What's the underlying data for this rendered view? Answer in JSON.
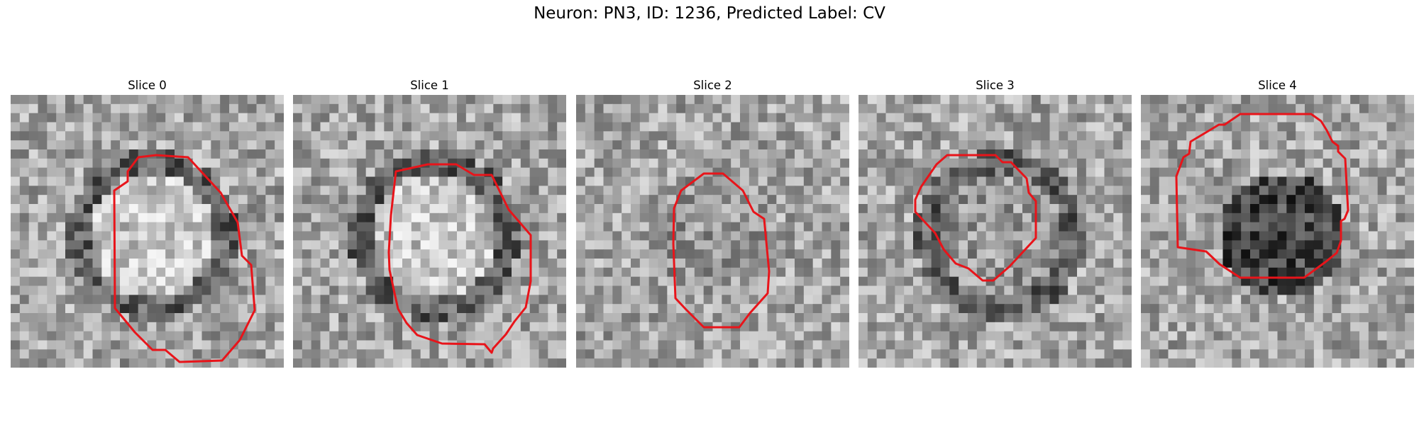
{
  "figure": {
    "title": "Neuron: PN3, ID: 1236, Predicted Label: CV",
    "contour_color": "#e8141a",
    "colormap": "grayscale",
    "grid_cells": 30
  },
  "panels": [
    {
      "title": "Slice 0",
      "center_brightness": "bright",
      "ring": "dark",
      "seed": 11
    },
    {
      "title": "Slice 1",
      "center_brightness": "bright",
      "ring": "dark",
      "seed": 23
    },
    {
      "title": "Slice 2",
      "center_brightness": "mid",
      "ring": "none",
      "seed": 37
    },
    {
      "title": "Slice 3",
      "center_brightness": "mid",
      "ring": "dark",
      "seed": 41
    },
    {
      "title": "Slice 4",
      "center_brightness": "dark",
      "ring": "none",
      "seed": 53
    }
  ]
}
